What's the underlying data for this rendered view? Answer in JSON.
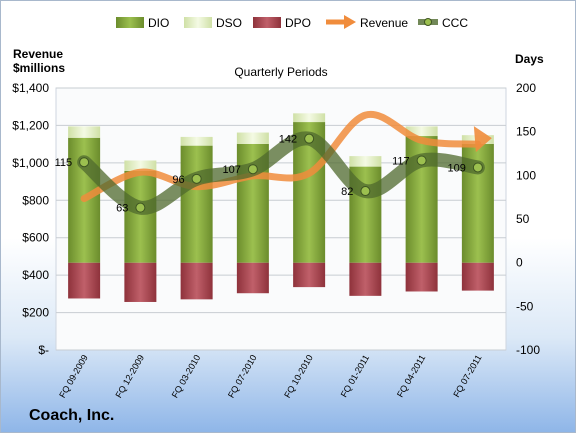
{
  "company": "Coach, Inc.",
  "chart_data": {
    "type": "bar",
    "title": "Quarterly Periods",
    "left_axis_label": [
      "Revenue",
      "$millions"
    ],
    "right_axis_label": "Days",
    "left_ylim": [
      0,
      1400
    ],
    "right_ylim": [
      -100,
      200
    ],
    "left_ticks": [
      "$1,400",
      "$1,200",
      "$1,000",
      "$800",
      "$600",
      "$400",
      "$200",
      "$-"
    ],
    "right_ticks": [
      "200",
      "150",
      "100",
      "50",
      "0",
      "-50",
      "-100"
    ],
    "grid": true,
    "legend_position": "top",
    "categories": [
      "FQ 09-2009",
      "FQ 12-2009",
      "FQ 03-2010",
      "FQ 07-2010",
      "FQ 10-2010",
      "FQ 01-2011",
      "FQ 04-2011",
      "FQ 07-2011"
    ],
    "series": [
      {
        "name": "DIO",
        "kind": "stacked-bar",
        "color": "#7da13a",
        "values": [
          143,
          105,
          134,
          136,
          161,
          110,
          145,
          136
        ]
      },
      {
        "name": "DSO",
        "kind": "stacked-bar",
        "color": "#e3f0c2",
        "values": [
          13,
          12,
          10,
          13,
          10,
          12,
          11,
          10
        ]
      },
      {
        "name": "DPO",
        "kind": "stacked-bar",
        "color": "#a8444c",
        "values": [
          -41,
          -45,
          -42,
          -35,
          -28,
          -38,
          -33,
          -32
        ]
      },
      {
        "name": "Revenue",
        "kind": "line",
        "axis": "left",
        "color": "#f08c3c",
        "values": [
          809,
          950,
          873,
          930,
          944,
          1255,
          1120,
          1100
        ]
      },
      {
        "name": "CCC",
        "kind": "line",
        "axis": "right",
        "color": "#4f6a2e",
        "values": [
          115,
          63,
          96,
          107,
          142,
          82,
          117,
          109
        ]
      }
    ],
    "ccc_labels": [
      "115",
      "63",
      "96",
      "107",
      "142",
      "82",
      "117",
      "109"
    ]
  }
}
